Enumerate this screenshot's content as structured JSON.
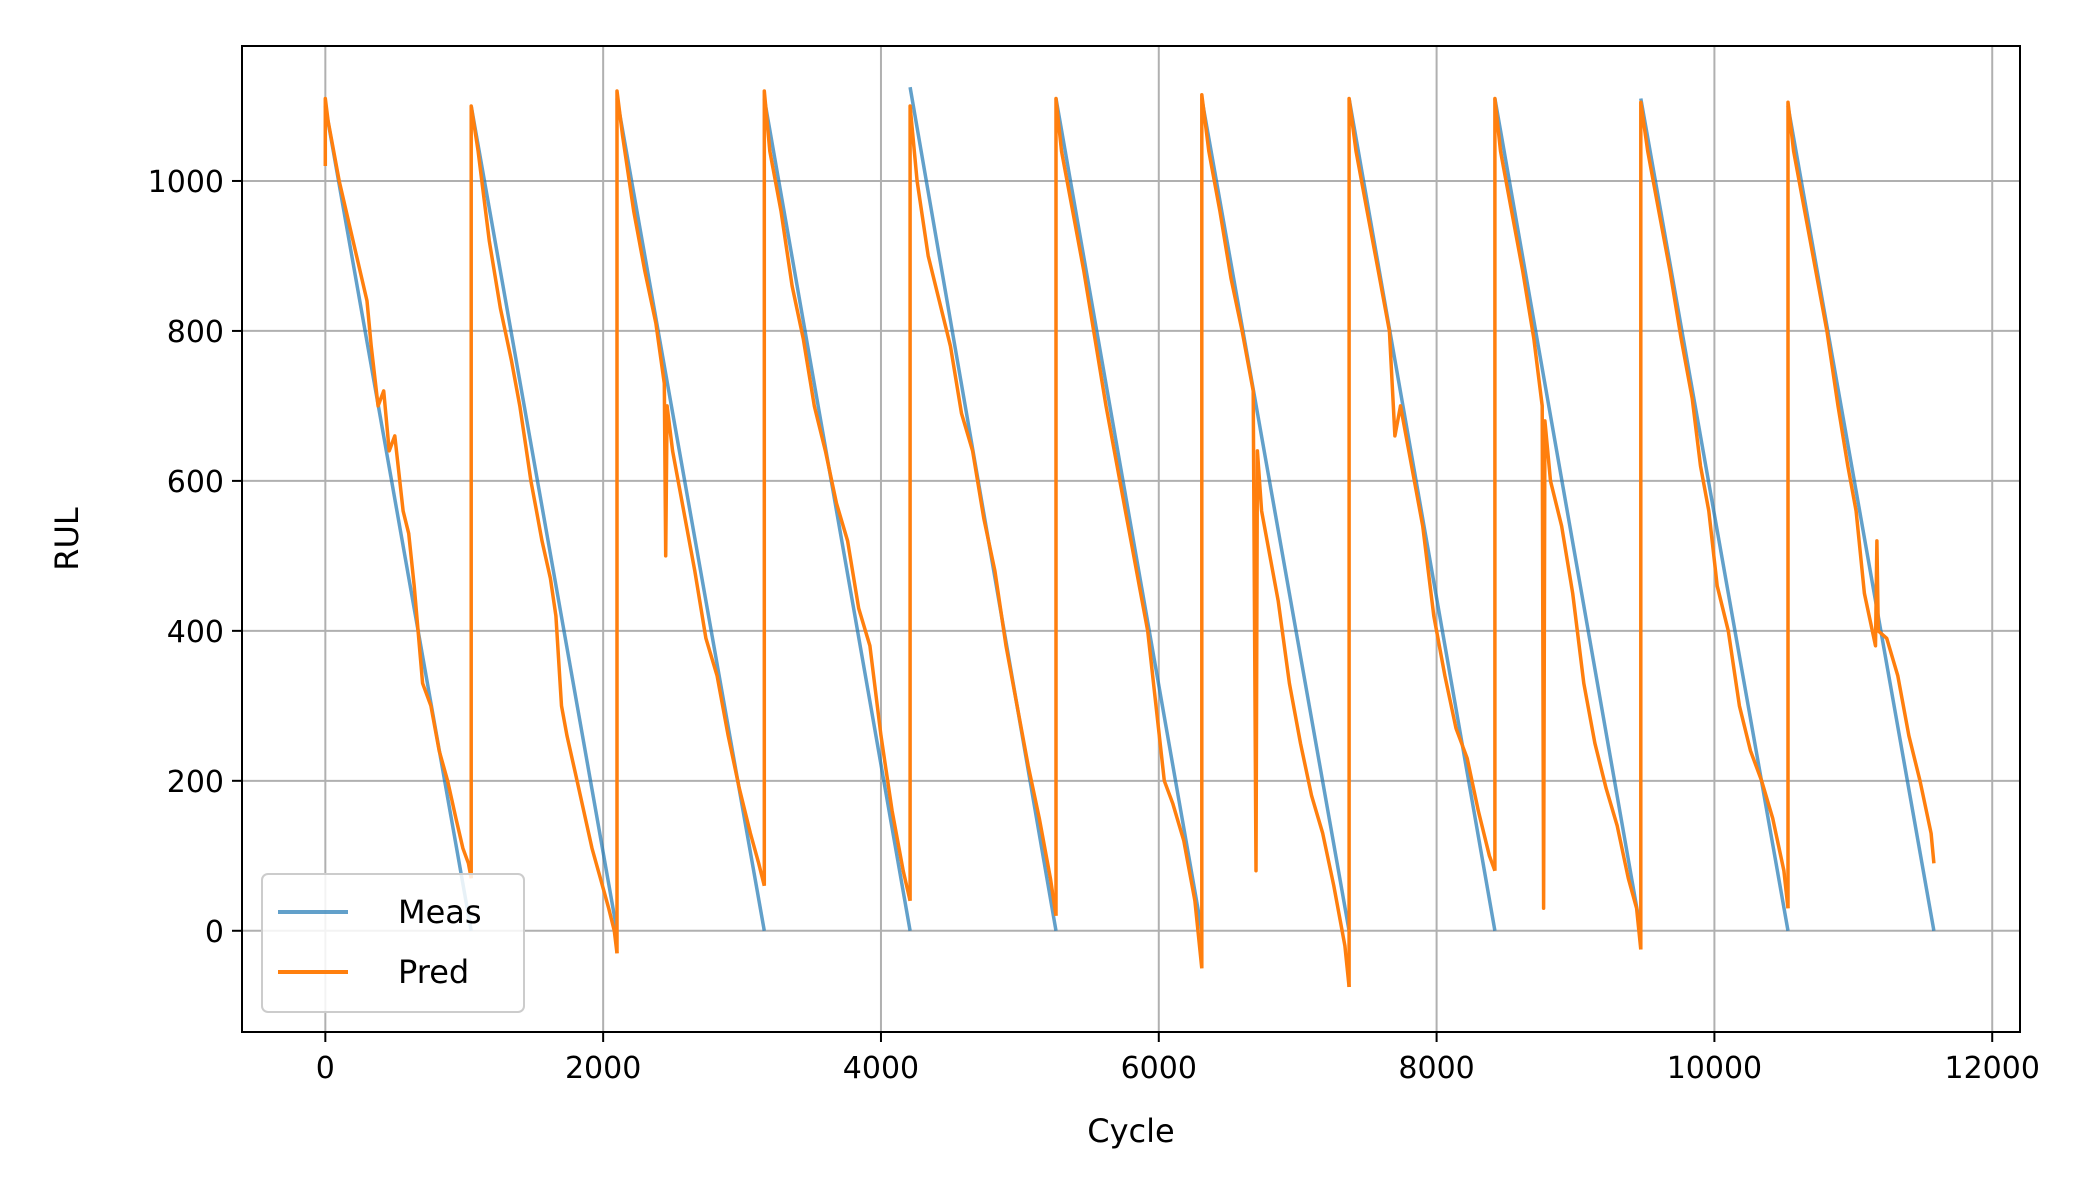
{
  "chart_data": {
    "type": "line",
    "xlabel": "Cycle",
    "ylabel": "RUL",
    "xlim": [
      -600,
      12200
    ],
    "ylim": [
      -135,
      1180
    ],
    "xticks": [
      0,
      2000,
      4000,
      6000,
      8000,
      10000,
      12000
    ],
    "yticks": [
      0,
      200,
      400,
      600,
      800,
      1000
    ],
    "grid": true,
    "legend_position": "lower-left",
    "series": [
      {
        "name": "Meas",
        "color": "#1f77b4",
        "segments": [
          {
            "x": [
              0,
              1050
            ],
            "y": [
              1100,
              0
            ]
          },
          {
            "x": [
              1050,
              2100
            ],
            "y": [
              1100,
              0
            ]
          },
          {
            "x": [
              2100,
              3160
            ],
            "y": [
              1110,
              0
            ]
          },
          {
            "x": [
              3160,
              4210
            ],
            "y": [
              1110,
              0
            ]
          },
          {
            "x": [
              4210,
              5260
            ],
            "y": [
              1125,
              0
            ]
          },
          {
            "x": [
              5260,
              6310
            ],
            "y": [
              1110,
              0
            ]
          },
          {
            "x": [
              6310,
              7370
            ],
            "y": [
              1110,
              0
            ]
          },
          {
            "x": [
              7370,
              8420
            ],
            "y": [
              1110,
              0
            ]
          },
          {
            "x": [
              8420,
              9470
            ],
            "y": [
              1110,
              0
            ]
          },
          {
            "x": [
              9470,
              10530
            ],
            "y": [
              1110,
              0
            ]
          },
          {
            "x": [
              10530,
              11580
            ],
            "y": [
              1100,
              0
            ]
          }
        ]
      },
      {
        "name": "Pred",
        "color": "#ff7f0e",
        "segments": [
          {
            "x": [
              0,
              0,
              20,
              100,
              200,
              300,
              330,
              380,
              420,
              460,
              500,
              560,
              600,
              640,
              700,
              760,
              820,
              880,
              940,
              990,
              1030,
              1050
            ],
            "y": [
              1020,
              1110,
              1080,
              1000,
              920,
              840,
              780,
              700,
              720,
              640,
              660,
              560,
              530,
              460,
              330,
              300,
              240,
              200,
              150,
              110,
              90,
              70
            ]
          },
          {
            "x": [
              1050,
              1050,
              1100,
              1180,
              1260,
              1340,
              1400,
              1440,
              1480,
              1520,
              1560,
              1620,
              1660,
              1700,
              1740,
              1800,
              1860,
              1920,
              1980,
              2040,
              2080,
              2100
            ],
            "y": [
              70,
              1100,
              1040,
              920,
              830,
              760,
              700,
              650,
              600,
              560,
              520,
              470,
              420,
              300,
              260,
              210,
              160,
              110,
              70,
              30,
              0,
              -30
            ]
          },
          {
            "x": [
              2100,
              2100,
              2140,
              2220,
              2300,
              2380,
              2440,
              2450,
              2460,
              2500,
              2580,
              2660,
              2740,
              2820,
              2900,
              2980,
              3060,
              3120,
              3160
            ],
            "y": [
              -30,
              1120,
              1060,
              960,
              880,
              810,
              730,
              500,
              700,
              640,
              560,
              480,
              390,
              340,
              260,
              190,
              130,
              90,
              60
            ]
          },
          {
            "x": [
              3160,
              3160,
              3200,
              3280,
              3360,
              3440,
              3520,
              3600,
              3680,
              3760,
              3840,
              3920,
              4000,
              4080,
              4160,
              4210
            ],
            "y": [
              60,
              1120,
              1040,
              960,
              860,
              790,
              700,
              640,
              570,
              520,
              430,
              380,
              260,
              160,
              80,
              40
            ]
          },
          {
            "x": [
              4210,
              4210,
              4260,
              4340,
              4420,
              4500,
              4580,
              4660,
              4740,
              4820,
              4900,
              4980,
              5060,
              5140,
              5220,
              5260
            ],
            "y": [
              40,
              1100,
              1000,
              900,
              840,
              780,
              690,
              640,
              550,
              480,
              380,
              300,
              220,
              150,
              70,
              20
            ]
          },
          {
            "x": [
              5260,
              5260,
              5300,
              5380,
              5460,
              5540,
              5620,
              5700,
              5760,
              5800,
              5860,
              5920,
              5980,
              6040,
              6100,
              6180,
              6260,
              6310
            ],
            "y": [
              20,
              1110,
              1040,
              960,
              880,
              790,
              700,
              620,
              560,
              520,
              460,
              400,
              300,
              200,
              170,
              120,
              40,
              -50
            ]
          },
          {
            "x": [
              6310,
              6310,
              6360,
              6440,
              6520,
              6600,
              6680,
              6700,
              6710,
              6740,
              6800,
              6860,
              6940,
              7020,
              7100,
              7180,
              7260,
              7340,
              7370
            ],
            "y": [
              -50,
              1115,
              1040,
              960,
              870,
              800,
              720,
              80,
              640,
              560,
              500,
              440,
              330,
              250,
              180,
              130,
              60,
              -20,
              -75
            ]
          },
          {
            "x": [
              7370,
              7370,
              7420,
              7500,
              7580,
              7660,
              7700,
              7740,
              7820,
              7900,
              7980,
              8060,
              8140,
              8220,
              8300,
              8380,
              8420
            ],
            "y": [
              -75,
              1110,
              1040,
              960,
              880,
              800,
              660,
              700,
              620,
              540,
              420,
              340,
              270,
              230,
              160,
              100,
              80
            ]
          },
          {
            "x": [
              8420,
              8420,
              8460,
              8540,
              8620,
              8700,
              8760,
              8770,
              8780,
              8820,
              8900,
              8980,
              9060,
              9140,
              9220,
              9300,
              9380,
              9440,
              9470
            ],
            "y": [
              80,
              1110,
              1040,
              960,
              880,
              790,
              700,
              30,
              680,
              600,
              540,
              450,
              330,
              250,
              190,
              140,
              70,
              30,
              -25
            ]
          },
          {
            "x": [
              9470,
              9470,
              9520,
              9600,
              9680,
              9760,
              9840,
              9900,
              9960,
              10020,
              10100,
              10180,
              10260,
              10340,
              10420,
              10500,
              10530
            ],
            "y": [
              -25,
              1105,
              1040,
              960,
              880,
              790,
              710,
              620,
              560,
              460,
              400,
              300,
              240,
              200,
              150,
              80,
              30
            ]
          },
          {
            "x": [
              10530,
              10530,
              10570,
              10650,
              10730,
              10810,
              10890,
              10960,
              11020,
              11080,
              11160,
              11170,
              11180,
              11240,
              11320,
              11400,
              11480,
              11560,
              11580
            ],
            "y": [
              30,
              1105,
              1040,
              960,
              880,
              800,
              700,
              620,
              560,
              450,
              380,
              520,
              400,
              390,
              340,
              260,
              200,
              130,
              90
            ]
          }
        ]
      }
    ]
  }
}
